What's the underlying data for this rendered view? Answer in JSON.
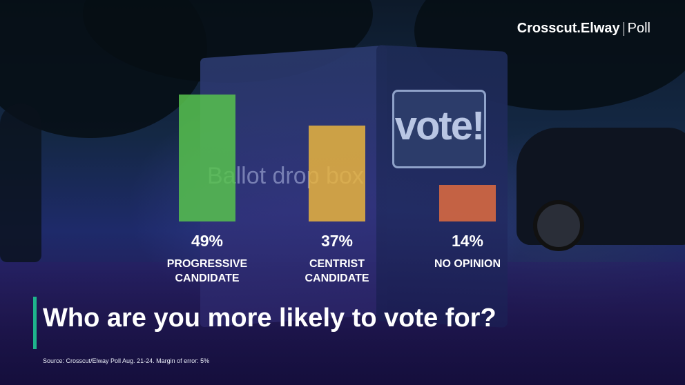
{
  "brand": {
    "name": "Crosscut.Elway",
    "suffix": "Poll"
  },
  "question": "Who are you more likely to vote for?",
  "source": "Source: Crosscut/Elway Poll Aug. 21-24. Margin of error: 5%",
  "background": {
    "sign_text": "vote!",
    "ballot_text": "Ballot drop box"
  },
  "chart_data": {
    "type": "bar",
    "categories": [
      "PROGRESSIVE\nCANDIDATE",
      "CENTRIST\nCANDIDATE",
      "NO OPINION"
    ],
    "values": [
      49,
      37,
      14
    ],
    "value_labels": [
      "49%",
      "37%",
      "14%"
    ],
    "colors": [
      "#57c24e",
      "#e9b43e",
      "#e06c40"
    ],
    "ylim": [
      0,
      49
    ],
    "grid": false,
    "legend": "none"
  }
}
